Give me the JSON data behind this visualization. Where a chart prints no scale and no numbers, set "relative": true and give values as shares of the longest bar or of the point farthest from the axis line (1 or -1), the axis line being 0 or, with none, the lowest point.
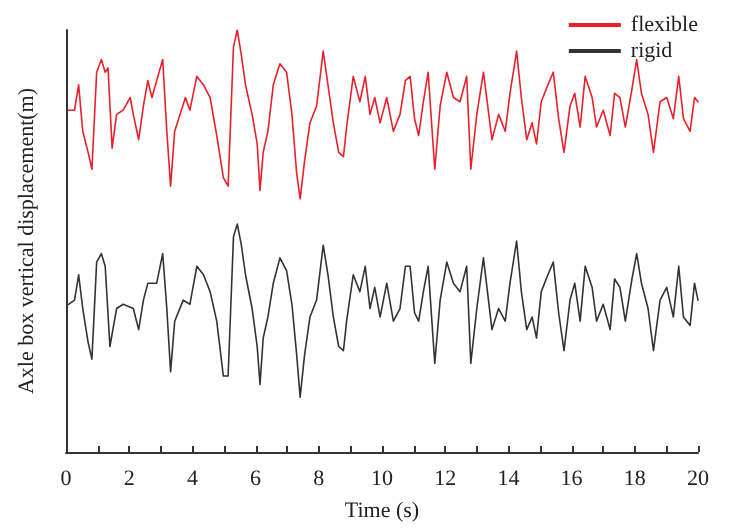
{
  "chart_data": {
    "type": "line",
    "relative": true,
    "xlabel": "Time (s)",
    "ylabel": "Axle box vertical displacement(m)",
    "xlim": [
      0,
      20
    ],
    "xticks": [
      0,
      {
        "value": 1,
        "label": null
      },
      2,
      {
        "value": 3,
        "label": null
      },
      4,
      {
        "value": 5,
        "label": null
      },
      6,
      {
        "value": 7,
        "label": null
      },
      8,
      {
        "value": 9,
        "label": null
      },
      10,
      {
        "value": 11,
        "label": null
      },
      12,
      {
        "value": 13,
        "label": null
      },
      14,
      {
        "value": 15,
        "label": null
      },
      16,
      {
        "value": 17,
        "label": null
      },
      18,
      {
        "value": 19,
        "label": null
      },
      20
    ],
    "legend": "top right",
    "grid": false,
    "marker": "none",
    "line_style": "solid",
    "series": [
      {
        "name": "flexible",
        "color": "#e8202a",
        "x": [
          0.08,
          0.27,
          0.4,
          0.53,
          0.7,
          0.82,
          0.97,
          1.12,
          1.24,
          1.33,
          1.46,
          1.6,
          1.81,
          2.03,
          2.13,
          2.3,
          2.45,
          2.59,
          2.72,
          2.87,
          3.06,
          3.19,
          3.31,
          3.44,
          3.61,
          3.78,
          3.92,
          4.14,
          4.35,
          4.56,
          4.77,
          4.98,
          5.13,
          5.3,
          5.42,
          5.55,
          5.68,
          5.89,
          6.05,
          6.14,
          6.24,
          6.39,
          6.56,
          6.77,
          6.98,
          7.15,
          7.3,
          7.41,
          7.55,
          7.72,
          7.93,
          8.14,
          8.29,
          8.46,
          8.63,
          8.78,
          8.88,
          9.09,
          9.3,
          9.47,
          9.62,
          9.77,
          9.94,
          10.15,
          10.36,
          10.57,
          10.74,
          10.89,
          11.03,
          11.16,
          11.31,
          11.46,
          11.67,
          11.84,
          12.05,
          12.26,
          12.47,
          12.68,
          12.81,
          13.0,
          13.21,
          13.48,
          13.69,
          13.9,
          14.05,
          14.26,
          14.41,
          14.58,
          14.75,
          14.89,
          15.04,
          15.25,
          15.42,
          15.59,
          15.76,
          15.95,
          16.1,
          16.27,
          16.43,
          16.65,
          16.79,
          17.0,
          17.22,
          17.36,
          17.53,
          17.7,
          17.91,
          18.06,
          18.21,
          18.42,
          18.59,
          18.8,
          19.01,
          19.22,
          19.39,
          19.54,
          19.75,
          19.89,
          20.0
        ],
        "values": [
          0.81,
          0.81,
          0.87,
          0.76,
          0.71,
          0.67,
          0.9,
          0.93,
          0.9,
          0.91,
          0.72,
          0.8,
          0.81,
          0.84,
          0.8,
          0.74,
          0.82,
          0.88,
          0.84,
          0.88,
          0.93,
          0.76,
          0.63,
          0.76,
          0.8,
          0.84,
          0.81,
          0.89,
          0.87,
          0.84,
          0.75,
          0.65,
          0.63,
          0.96,
          1.0,
          0.94,
          0.87,
          0.8,
          0.73,
          0.62,
          0.71,
          0.76,
          0.87,
          0.92,
          0.9,
          0.8,
          0.66,
          0.6,
          0.69,
          0.78,
          0.82,
          0.95,
          0.87,
          0.78,
          0.71,
          0.7,
          0.77,
          0.89,
          0.83,
          0.89,
          0.8,
          0.84,
          0.78,
          0.84,
          0.76,
          0.8,
          0.88,
          0.89,
          0.79,
          0.75,
          0.83,
          0.9,
          0.67,
          0.82,
          0.9,
          0.84,
          0.83,
          0.89,
          0.67,
          0.8,
          0.9,
          0.74,
          0.8,
          0.76,
          0.85,
          0.95,
          0.84,
          0.74,
          0.78,
          0.73,
          0.83,
          0.87,
          0.9,
          0.79,
          0.71,
          0.82,
          0.85,
          0.77,
          0.89,
          0.84,
          0.77,
          0.81,
          0.75,
          0.85,
          0.84,
          0.77,
          0.86,
          0.93,
          0.85,
          0.8,
          0.71,
          0.83,
          0.84,
          0.79,
          0.89,
          0.79,
          0.76,
          0.84,
          0.83
        ]
      },
      {
        "name": "rigid",
        "color": "#333333",
        "x": [
          0.08,
          0.27,
          0.4,
          0.53,
          0.7,
          0.82,
          0.97,
          1.12,
          1.24,
          1.39,
          1.6,
          1.81,
          2.13,
          2.3,
          2.45,
          2.59,
          2.87,
          3.06,
          3.19,
          3.31,
          3.44,
          3.71,
          3.92,
          4.14,
          4.35,
          4.56,
          4.77,
          4.98,
          5.13,
          5.3,
          5.42,
          5.55,
          5.68,
          5.89,
          6.05,
          6.14,
          6.24,
          6.39,
          6.56,
          6.77,
          6.98,
          7.15,
          7.3,
          7.41,
          7.55,
          7.72,
          7.93,
          8.14,
          8.29,
          8.46,
          8.63,
          8.78,
          8.88,
          9.09,
          9.3,
          9.47,
          9.62,
          9.77,
          9.94,
          10.15,
          10.36,
          10.57,
          10.74,
          10.89,
          11.03,
          11.16,
          11.31,
          11.46,
          11.67,
          11.84,
          12.05,
          12.26,
          12.47,
          12.68,
          12.81,
          13.0,
          13.21,
          13.48,
          13.69,
          13.9,
          14.05,
          14.26,
          14.41,
          14.58,
          14.75,
          14.89,
          15.04,
          15.25,
          15.42,
          15.59,
          15.76,
          15.95,
          16.1,
          16.27,
          16.43,
          16.65,
          16.79,
          17.0,
          17.22,
          17.36,
          17.53,
          17.7,
          17.91,
          18.06,
          18.21,
          18.42,
          18.59,
          18.8,
          19.01,
          19.22,
          19.39,
          19.54,
          19.75,
          19.89,
          20.0
        ],
        "values": [
          0.35,
          0.36,
          0.42,
          0.34,
          0.26,
          0.22,
          0.45,
          0.47,
          0.44,
          0.25,
          0.34,
          0.35,
          0.34,
          0.29,
          0.36,
          0.4,
          0.4,
          0.47,
          0.34,
          0.19,
          0.31,
          0.36,
          0.35,
          0.44,
          0.42,
          0.38,
          0.31,
          0.18,
          0.18,
          0.51,
          0.54,
          0.49,
          0.42,
          0.34,
          0.25,
          0.16,
          0.27,
          0.32,
          0.4,
          0.46,
          0.43,
          0.35,
          0.23,
          0.13,
          0.23,
          0.32,
          0.36,
          0.49,
          0.42,
          0.32,
          0.25,
          0.24,
          0.31,
          0.42,
          0.38,
          0.44,
          0.34,
          0.39,
          0.32,
          0.4,
          0.31,
          0.34,
          0.44,
          0.44,
          0.33,
          0.31,
          0.38,
          0.44,
          0.21,
          0.36,
          0.45,
          0.4,
          0.38,
          0.44,
          0.21,
          0.34,
          0.46,
          0.29,
          0.34,
          0.31,
          0.4,
          0.5,
          0.38,
          0.29,
          0.32,
          0.27,
          0.38,
          0.42,
          0.45,
          0.33,
          0.24,
          0.36,
          0.4,
          0.31,
          0.44,
          0.39,
          0.31,
          0.35,
          0.29,
          0.41,
          0.39,
          0.31,
          0.41,
          0.47,
          0.4,
          0.34,
          0.24,
          0.36,
          0.39,
          0.32,
          0.44,
          0.32,
          0.3,
          0.4,
          0.36
        ]
      }
    ]
  }
}
